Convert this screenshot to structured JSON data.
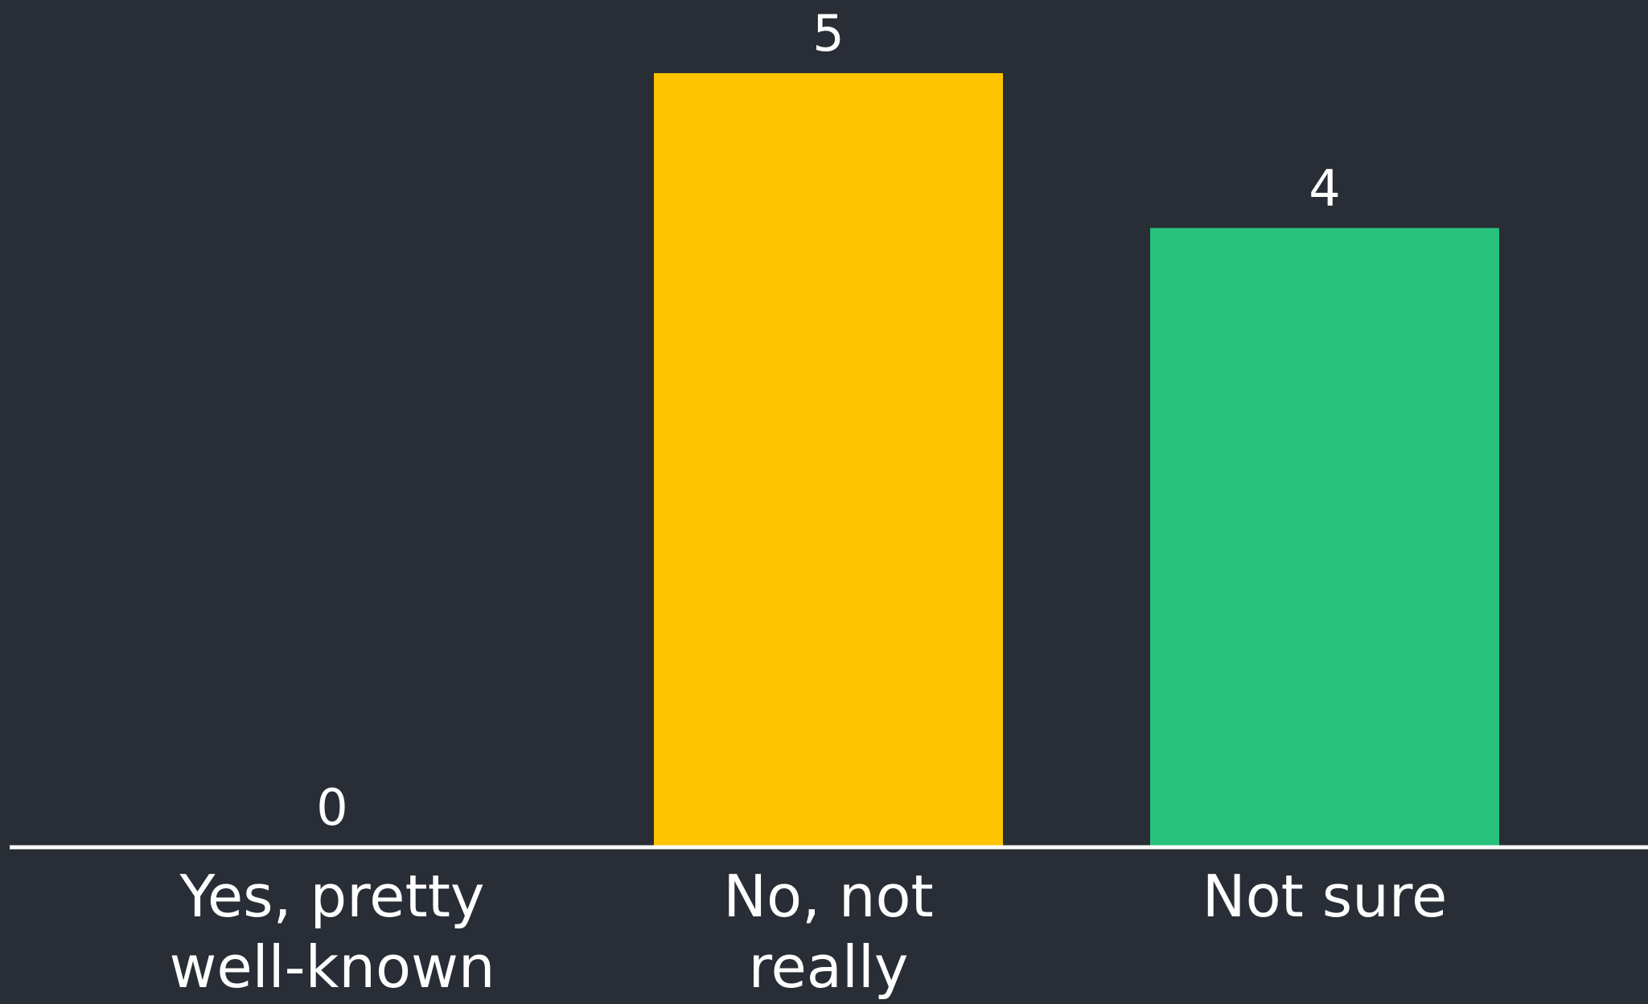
{
  "chart_data": {
    "type": "bar",
    "title": "",
    "xlabel": "",
    "ylabel": "",
    "categories": [
      [
        "Yes, pretty",
        "well-known"
      ],
      [
        "No, not",
        "really"
      ],
      [
        "Not sure"
      ]
    ],
    "values": [
      0,
      5,
      4
    ],
    "ylim": [
      0,
      5
    ],
    "grid": false,
    "show_value_labels": true,
    "colors": {
      "background": "#292d36",
      "axis": "#ffffff",
      "text": "#ffffff",
      "bars": [
        "#ffffff",
        "#fec400",
        "#27c27c"
      ]
    }
  }
}
